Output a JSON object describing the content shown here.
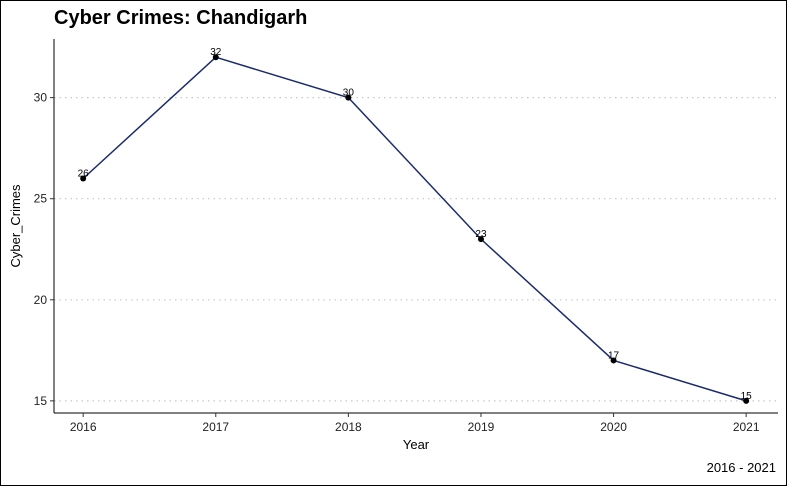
{
  "chart_data": {
    "type": "line",
    "title": "Cyber Crimes: Chandigarh",
    "caption": "2016 - 2021",
    "xlabel": "Year",
    "ylabel": "Cyber_Crimes",
    "x": [
      2016,
      2017,
      2018,
      2019,
      2020,
      2021
    ],
    "series": [
      {
        "values": [
          26,
          32,
          30,
          23,
          17,
          15
        ]
      }
    ],
    "data_labels": [
      "26",
      "32",
      "30",
      "23",
      "17",
      "15"
    ],
    "x_ticks": [
      "2016",
      "2017",
      "2018",
      "2019",
      "2020",
      "2021"
    ],
    "y_ticks": [
      15,
      20,
      25,
      30
    ],
    "y_tick_labels": [
      "15",
      "20",
      "25",
      "30"
    ],
    "xlim": [
      2015.78,
      2021.24
    ],
    "ylim": [
      14.4,
      32.9
    ],
    "grid": "horizontal-dotted",
    "line_color": "#1a2a6c",
    "point_color": "#000000",
    "grid_color": "#c8c8c8"
  }
}
